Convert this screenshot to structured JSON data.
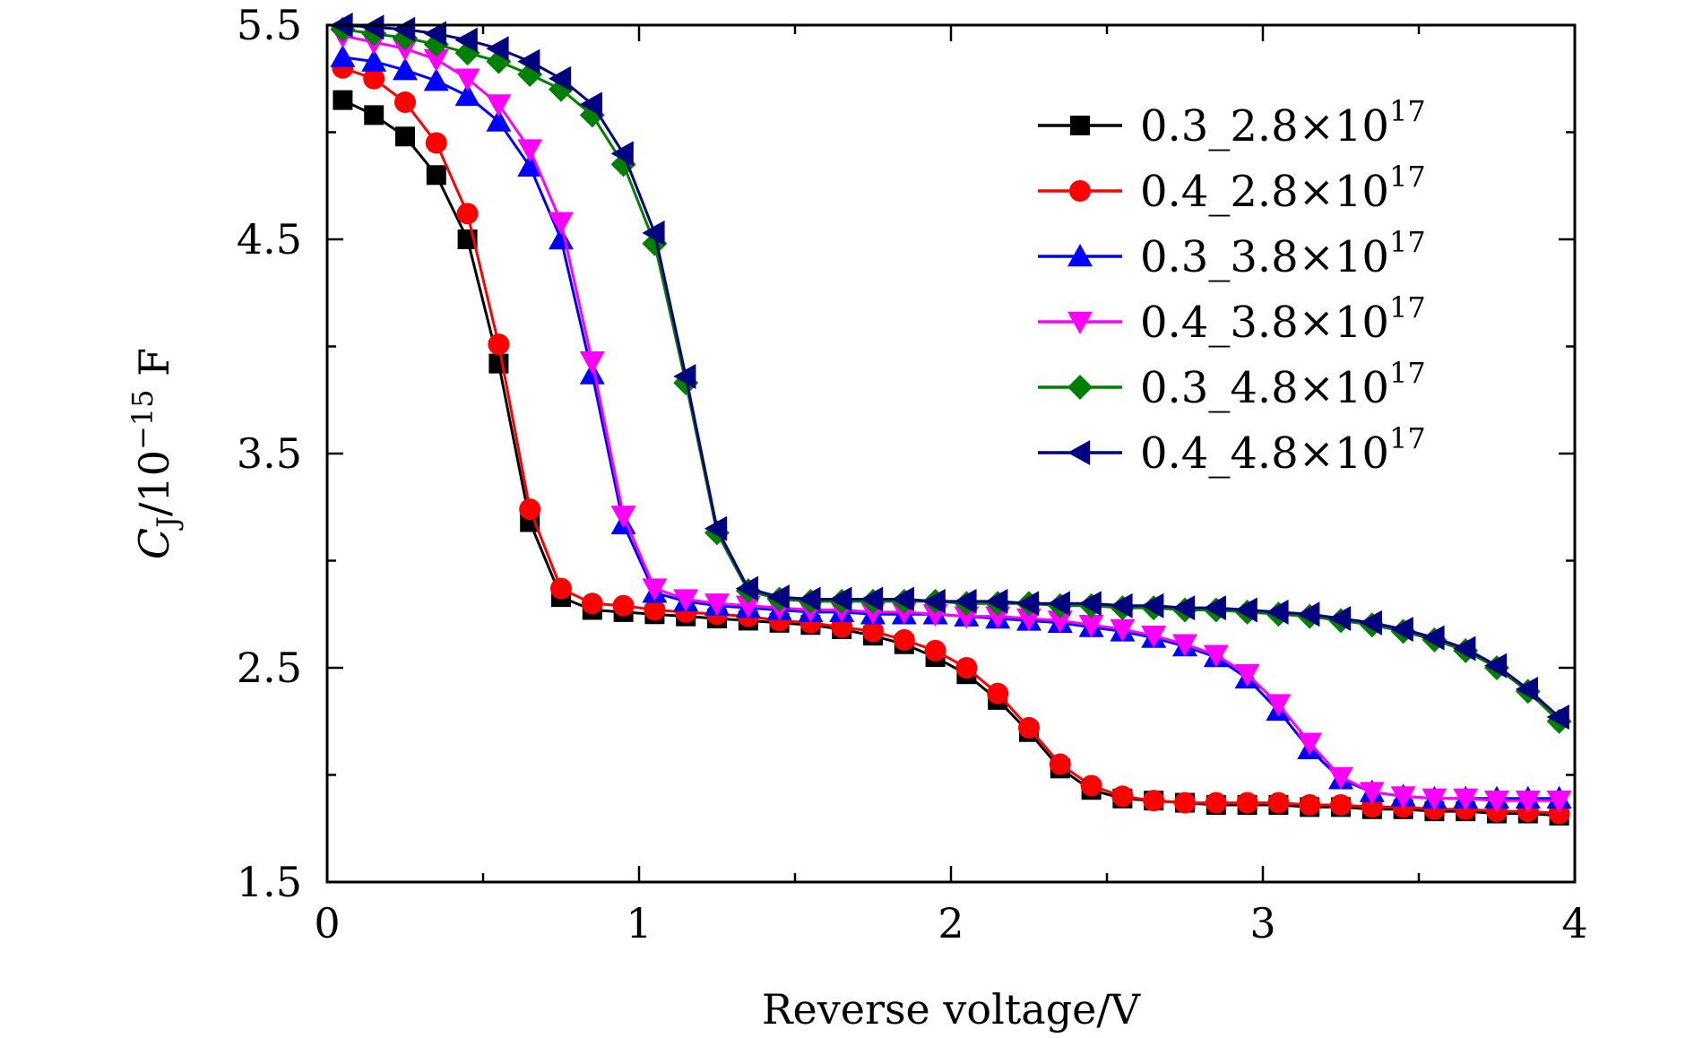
{
  "chart_data": {
    "type": "line",
    "title": "",
    "xlabel": "Reverse voltage/V",
    "ylabel": {
      "main": "C",
      "sub": "J",
      "unit_prefix": "/10",
      "exponent": "−15",
      "unit": " F"
    },
    "xlim": [
      0,
      4
    ],
    "ylim": [
      1.5,
      5.5
    ],
    "x_ticks": [
      "0",
      "1",
      "2",
      "3",
      "4"
    ],
    "y_ticks": [
      "1.5",
      "2.5",
      "3.5",
      "4.5",
      "5.5"
    ],
    "legend_position": "top-right",
    "x": [
      0.05,
      0.15,
      0.25,
      0.35,
      0.45,
      0.55,
      0.65,
      0.75,
      0.85,
      0.95,
      1.05,
      1.15,
      1.25,
      1.35,
      1.45,
      1.55,
      1.65,
      1.75,
      1.85,
      1.95,
      2.05,
      2.15,
      2.25,
      2.35,
      2.45,
      2.55,
      2.65,
      2.75,
      2.85,
      2.95,
      3.05,
      3.15,
      3.25,
      3.35,
      3.45,
      3.55,
      3.65,
      3.75,
      3.85,
      3.95
    ],
    "series": [
      {
        "name": "0.3_2.8×10",
        "exp": "17",
        "color": "#000000",
        "marker": "square",
        "values": [
          5.15,
          5.08,
          4.98,
          4.8,
          4.5,
          3.92,
          3.18,
          2.83,
          2.77,
          2.76,
          2.75,
          2.74,
          2.73,
          2.72,
          2.71,
          2.7,
          2.68,
          2.65,
          2.61,
          2.55,
          2.47,
          2.35,
          2.2,
          2.03,
          1.93,
          1.89,
          1.88,
          1.87,
          1.86,
          1.86,
          1.86,
          1.85,
          1.85,
          1.84,
          1.84,
          1.83,
          1.83,
          1.82,
          1.82,
          1.81
        ]
      },
      {
        "name": "0.4_2.8×10",
        "exp": "17",
        "color": "#ff0000",
        "marker": "circle",
        "values": [
          5.3,
          5.25,
          5.14,
          4.95,
          4.62,
          4.01,
          3.24,
          2.87,
          2.8,
          2.79,
          2.77,
          2.76,
          2.75,
          2.74,
          2.72,
          2.71,
          2.69,
          2.67,
          2.63,
          2.58,
          2.5,
          2.38,
          2.22,
          2.05,
          1.95,
          1.9,
          1.88,
          1.87,
          1.87,
          1.87,
          1.87,
          1.86,
          1.86,
          1.85,
          1.85,
          1.84,
          1.84,
          1.83,
          1.83,
          1.82
        ]
      },
      {
        "name": "0.3_3.8×10",
        "exp": "17",
        "color": "#0000ff",
        "marker": "triangle-up",
        "values": [
          5.35,
          5.33,
          5.29,
          5.24,
          5.17,
          5.05,
          4.84,
          4.5,
          3.87,
          3.17,
          2.85,
          2.81,
          2.79,
          2.78,
          2.77,
          2.76,
          2.76,
          2.75,
          2.75,
          2.75,
          2.74,
          2.73,
          2.72,
          2.71,
          2.69,
          2.67,
          2.64,
          2.6,
          2.55,
          2.45,
          2.3,
          2.12,
          1.98,
          1.92,
          1.9,
          1.89,
          1.89,
          1.89,
          1.89,
          1.89
        ]
      },
      {
        "name": "0.4_3.8×10",
        "exp": "17",
        "color": "#ff00ff",
        "marker": "triangle-down",
        "values": [
          5.45,
          5.42,
          5.39,
          5.34,
          5.25,
          5.13,
          4.92,
          4.58,
          3.93,
          3.21,
          2.87,
          2.82,
          2.8,
          2.79,
          2.78,
          2.77,
          2.77,
          2.76,
          2.76,
          2.75,
          2.74,
          2.74,
          2.73,
          2.72,
          2.7,
          2.68,
          2.65,
          2.61,
          2.56,
          2.47,
          2.33,
          2.15,
          1.99,
          1.92,
          1.9,
          1.89,
          1.89,
          1.88,
          1.88,
          1.88
        ]
      },
      {
        "name": "0.3_4.8×10",
        "exp": "17",
        "color": "#008000",
        "marker": "diamond",
        "values": [
          5.48,
          5.46,
          5.44,
          5.41,
          5.37,
          5.33,
          5.27,
          5.2,
          5.08,
          4.85,
          4.48,
          3.83,
          3.13,
          2.86,
          2.82,
          2.81,
          2.81,
          2.81,
          2.81,
          2.81,
          2.8,
          2.8,
          2.8,
          2.79,
          2.79,
          2.78,
          2.78,
          2.77,
          2.77,
          2.76,
          2.75,
          2.74,
          2.72,
          2.7,
          2.67,
          2.63,
          2.58,
          2.5,
          2.39,
          2.25
        ]
      },
      {
        "name": "0.4_4.8×10",
        "exp": "17",
        "color": "#000080",
        "marker": "triangle-left",
        "values": [
          5.5,
          5.49,
          5.48,
          5.46,
          5.43,
          5.39,
          5.33,
          5.25,
          5.13,
          4.9,
          4.53,
          3.86,
          3.15,
          2.87,
          2.83,
          2.82,
          2.82,
          2.82,
          2.82,
          2.81,
          2.81,
          2.81,
          2.8,
          2.8,
          2.8,
          2.79,
          2.79,
          2.78,
          2.78,
          2.77,
          2.76,
          2.75,
          2.73,
          2.71,
          2.68,
          2.64,
          2.59,
          2.51,
          2.4,
          2.27
        ]
      }
    ]
  }
}
